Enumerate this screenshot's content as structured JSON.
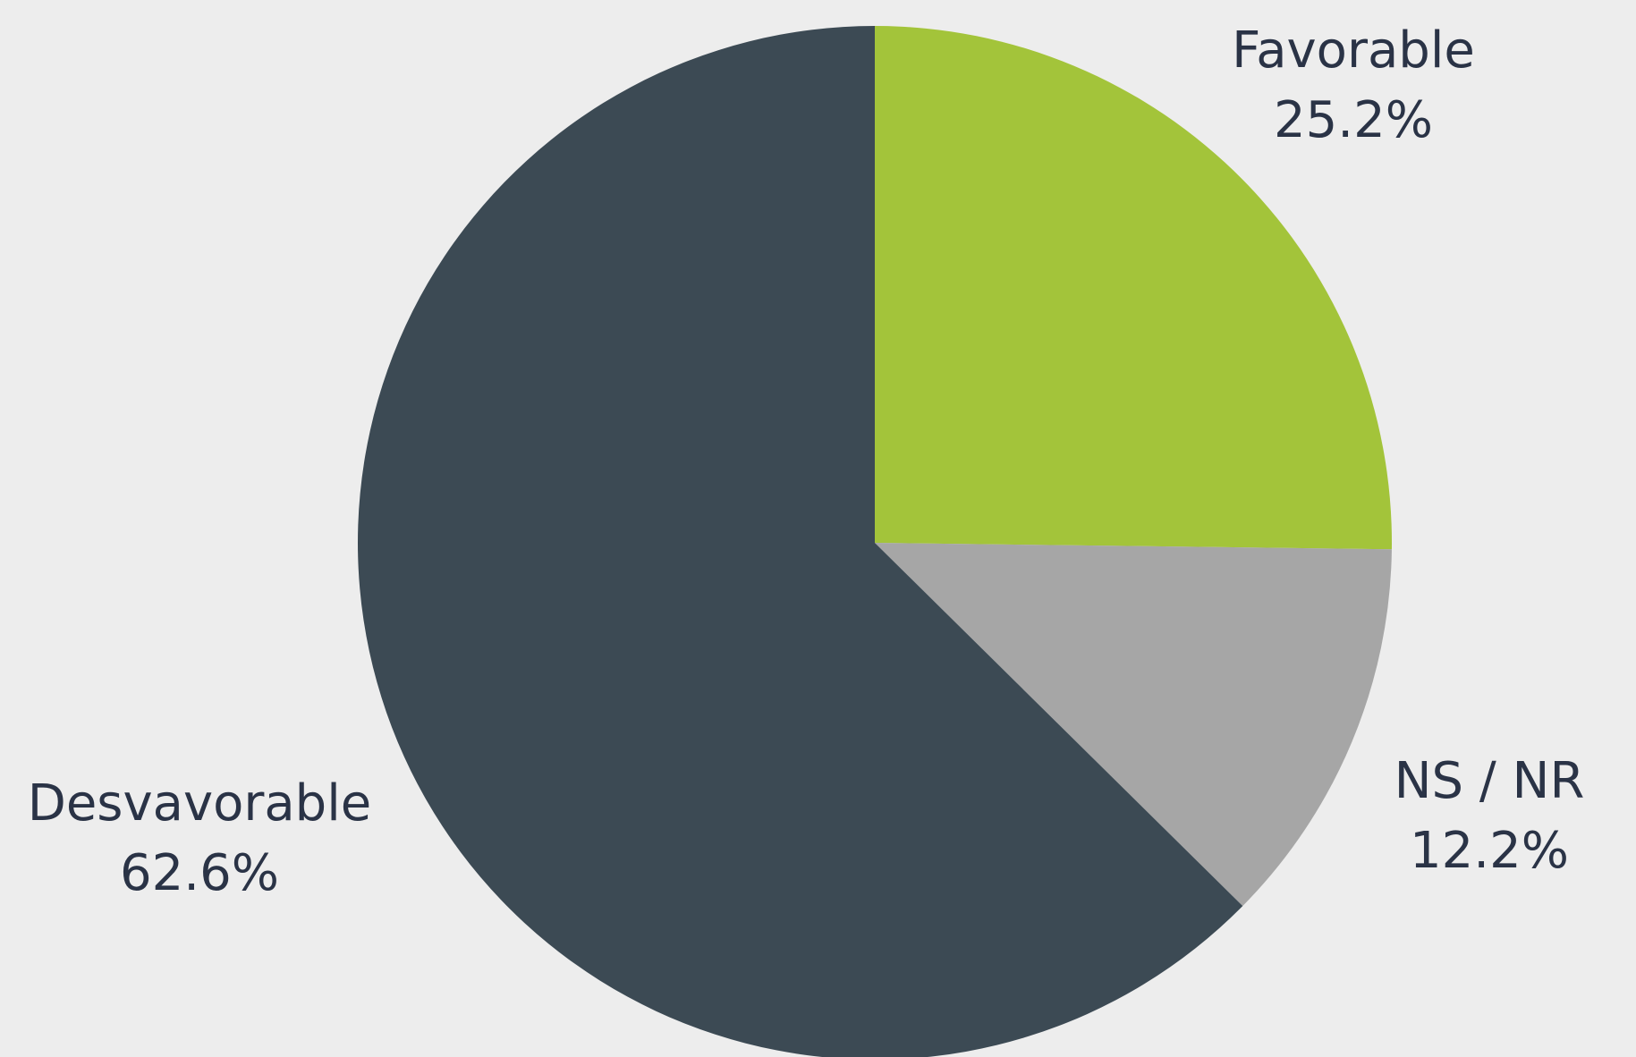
{
  "chart_data": {
    "type": "pie",
    "title": "",
    "slices": [
      {
        "name": "Favorable",
        "value": 25.2,
        "value_label": "25.2%",
        "color": "#a3c43a"
      },
      {
        "name": "NS / NR",
        "value": 12.2,
        "value_label": "12.2%",
        "color": "#a6a6a6"
      },
      {
        "name": "Desvavorable",
        "value": 62.6,
        "value_label": "62.6%",
        "color": "#3c4a54"
      }
    ],
    "start_angle": "12 o'clock",
    "direction": "clockwise",
    "legend": "none",
    "labels": "outside"
  }
}
